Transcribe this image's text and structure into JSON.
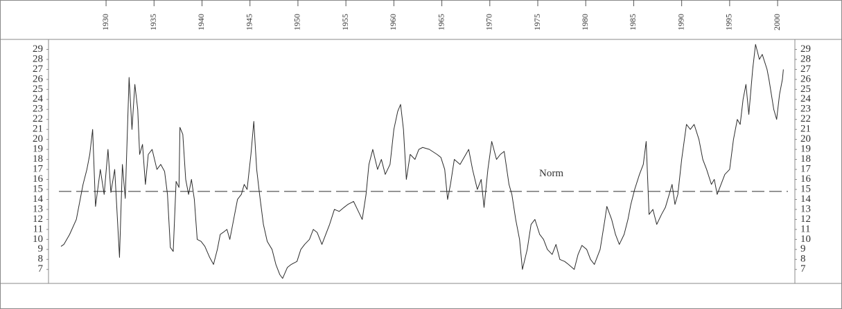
{
  "chart_data": {
    "type": "line",
    "x": [
      1925.3,
      1925.6,
      1926.2,
      1926.9,
      1927.6,
      1928.0,
      1928.3,
      1928.6,
      1928.9,
      1929.4,
      1929.8,
      1930.2,
      1930.5,
      1930.9,
      1931.1,
      1931.4,
      1931.7,
      1932.0,
      1932.4,
      1932.7,
      1933.0,
      1933.3,
      1933.5,
      1933.8,
      1934.1,
      1934.4,
      1934.8,
      1935.3,
      1935.7,
      1936.1,
      1936.4,
      1936.7,
      1937.0,
      1937.3,
      1937.6,
      1937.7,
      1938.0,
      1938.3,
      1938.6,
      1938.9,
      1939.2,
      1939.5,
      1939.9,
      1940.3,
      1940.8,
      1941.2,
      1941.6,
      1941.9,
      1942.2,
      1942.6,
      1942.9,
      1943.4,
      1943.7,
      1944.1,
      1944.4,
      1944.7,
      1945.1,
      1945.4,
      1945.7,
      1946.0,
      1946.4,
      1946.8,
      1947.3,
      1947.7,
      1948.1,
      1948.4,
      1948.9,
      1949.3,
      1949.9,
      1950.3,
      1950.7,
      1951.2,
      1951.6,
      1952.0,
      1952.5,
      1952.9,
      1953.3,
      1953.8,
      1954.3,
      1954.8,
      1955.2,
      1955.8,
      1956.2,
      1956.7,
      1957.1,
      1957.4,
      1957.8,
      1958.3,
      1958.7,
      1959.1,
      1959.6,
      1960.0,
      1960.4,
      1960.7,
      1961.0,
      1961.3,
      1961.7,
      1962.2,
      1962.6,
      1963.0,
      1963.7,
      1964.5,
      1964.9,
      1965.3,
      1965.6,
      1965.9,
      1966.3,
      1966.9,
      1967.5,
      1967.8,
      1968.2,
      1968.7,
      1969.1,
      1969.4,
      1969.8,
      1970.2,
      1970.7,
      1971.1,
      1971.5,
      1972.0,
      1972.3,
      1972.7,
      1973.1,
      1973.4,
      1973.9,
      1974.3,
      1974.7,
      1975.2,
      1975.6,
      1976.0,
      1976.5,
      1976.9,
      1977.3,
      1977.8,
      1978.2,
      1978.8,
      1979.2,
      1979.6,
      1980.1,
      1980.5,
      1980.9,
      1981.5,
      1982.0,
      1982.2,
      1982.7,
      1983.1,
      1983.5,
      1984.0,
      1984.4,
      1984.7,
      1985.1,
      1985.6,
      1986.0,
      1986.3,
      1986.6,
      1987.0,
      1987.4,
      1987.9,
      1988.3,
      1988.7,
      1989.0,
      1989.3,
      1989.6,
      1990.0,
      1990.5,
      1990.9,
      1991.3,
      1991.8,
      1992.2,
      1992.6,
      1993.1,
      1993.4,
      1993.7,
      1994.1,
      1994.5,
      1995.0,
      1995.4,
      1995.8,
      1996.1,
      1996.4,
      1996.7,
      1997.0,
      1997.4,
      1997.7,
      1998.1,
      1998.4,
      1998.9,
      1999.1,
      1999.6,
      1999.9,
      2000.2,
      2000.5,
      2000.6
    ],
    "values": [
      9.3,
      9.5,
      10.5,
      12,
      15.5,
      17,
      18.5,
      21,
      13.3,
      17,
      14.5,
      19,
      14.7,
      17,
      13.5,
      8.2,
      17.5,
      14.1,
      26.2,
      21,
      25.5,
      23,
      18.5,
      19.5,
      15.5,
      18.5,
      19,
      17,
      17.5,
      16.8,
      14.5,
      9.2,
      8.8,
      15.8,
      15.2,
      21.2,
      20.5,
      16,
      14.5,
      16,
      14,
      10,
      9.8,
      9.3,
      8.2,
      7.5,
      9,
      10.5,
      10.7,
      11,
      10,
      12.5,
      14,
      14.5,
      15.5,
      15,
      18.5,
      21.8,
      17,
      14.5,
      11.5,
      9.8,
      9,
      7.5,
      6.5,
      6.1,
      7.2,
      7.5,
      7.8,
      9,
      9.5,
      10,
      11,
      10.7,
      9.5,
      10.5,
      11.5,
      13,
      12.8,
      13.2,
      13.5,
      13.8,
      13,
      12,
      14.5,
      17.5,
      19,
      17,
      18,
      16.5,
      17.5,
      21,
      22.8,
      23.5,
      21,
      16,
      18.5,
      18,
      19,
      19.2,
      19,
      18.5,
      18.2,
      17,
      14,
      15.5,
      18,
      17.5,
      18.5,
      19,
      17,
      15,
      16,
      13.2,
      17,
      19.8,
      18,
      18.5,
      18.8,
      15.5,
      14.5,
      12,
      10,
      7,
      9,
      11.5,
      12,
      10.5,
      10,
      9,
      8.5,
      9.5,
      8,
      7.8,
      7.5,
      7,
      8.5,
      9.4,
      9,
      8,
      7.5,
      9,
      12,
      13.3,
      12,
      10.5,
      9.5,
      10.5,
      12,
      13.5,
      15,
      16.5,
      17.5,
      19.8,
      12.5,
      13,
      11.5,
      12.5,
      13.2,
      14.5,
      15.5,
      13.5,
      14.5,
      18,
      21.5,
      21,
      21.5,
      20,
      18,
      17,
      15.5,
      16,
      14.5,
      15.5,
      16.5,
      17,
      20,
      22,
      21.5,
      24,
      25.5,
      22.5,
      27,
      29.5,
      28,
      28.5,
      27,
      26,
      23,
      22,
      24.5,
      26,
      27
    ],
    "color": "#2b2b2b",
    "xlim": [
      1924,
      2001.8
    ],
    "xticks": [
      1930,
      1935,
      1940,
      1945,
      1950,
      1955,
      1960,
      1965,
      1970,
      1975,
      1980,
      1985,
      1990,
      1995,
      2000
    ],
    "ylim": [
      5.6,
      30
    ],
    "yticks": [
      7,
      8,
      9,
      10,
      11,
      12,
      13,
      14,
      15,
      16,
      17,
      18,
      19,
      20,
      21,
      22,
      23,
      24,
      25,
      26,
      27,
      28,
      29
    ],
    "reference_line": {
      "value": 14.8,
      "label": "Norm",
      "color": "#555555"
    }
  }
}
